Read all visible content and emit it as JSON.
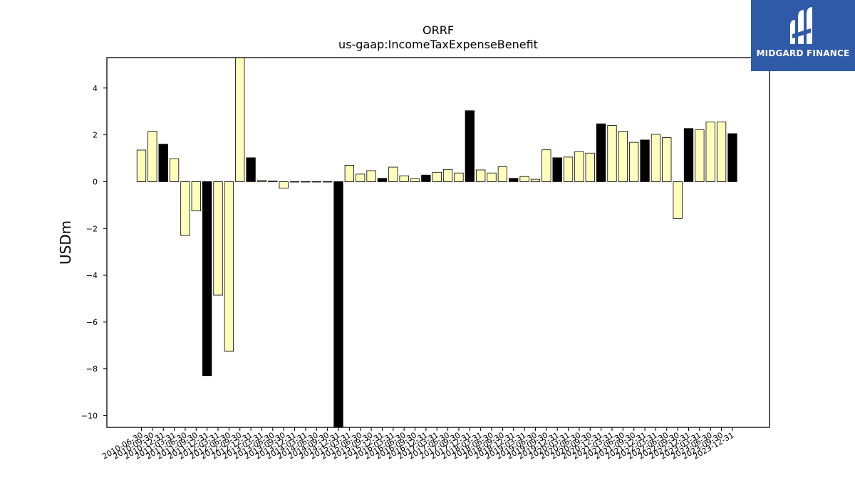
{
  "logo": {
    "text": "MIDGARD FINANCE",
    "icon": "midgard-logo-icon",
    "background": "#2f5aa8"
  },
  "chart_data": {
    "type": "bar",
    "title": "ORRF",
    "subtitle": "us-gaap:IncomeTaxExpenseBenefit",
    "ylabel": "USDm",
    "xlabel": "",
    "ylim": [
      -10.5,
      5.3
    ],
    "yticks": [
      -10,
      -8,
      -6,
      -4,
      -2,
      0,
      2,
      4
    ],
    "grid": false,
    "colors": {
      "quarter": "#ffffbb",
      "annual": "#000000",
      "edge": "#000000"
    },
    "categories": [
      "2010-06-30",
      "2010-09-30",
      "2010-12-31",
      "2011-03-31",
      "2011-06-30",
      "2011-09-30",
      "2011-12-31",
      "2012-03-31",
      "2012-06-30",
      "2012-09-30",
      "2012-12-31",
      "2013-03-31",
      "2013-06-30",
      "2013-09-30",
      "2013-12-31",
      "2014-03-31",
      "2014-06-30",
      "2014-09-30",
      "2014-12-31",
      "2015-03-31",
      "2015-06-30",
      "2015-09-30",
      "2015-12-31",
      "2016-03-31",
      "2016-06-30",
      "2016-09-30",
      "2016-12-31",
      "2017-03-31",
      "2017-06-30",
      "2017-09-30",
      "2017-12-31",
      "2018-03-31",
      "2018-06-30",
      "2018-09-30",
      "2018-12-31",
      "2019-03-31",
      "2019-06-30",
      "2019-09-30",
      "2019-12-31",
      "2020-03-31",
      "2020-06-30",
      "2020-09-30",
      "2020-12-31",
      "2021-03-31",
      "2021-06-30",
      "2021-09-30",
      "2021-12-31",
      "2022-03-31",
      "2022-06-30",
      "2022-09-30",
      "2022-12-31",
      "2023-03-31",
      "2023-06-30",
      "2023-09-30",
      "2023-12-31"
    ],
    "values": [
      1.35,
      2.15,
      1.6,
      0.98,
      -2.3,
      -1.25,
      -8.3,
      -4.85,
      -7.25,
      5.3,
      1.02,
      0.05,
      0.03,
      -0.28,
      0.0,
      0.0,
      0.0,
      0.0,
      -10.5,
      0.7,
      0.32,
      0.47,
      0.14,
      0.62,
      0.25,
      0.12,
      0.28,
      0.4,
      0.52,
      0.37,
      3.03,
      0.5,
      0.37,
      0.64,
      0.14,
      0.22,
      0.1,
      1.36,
      1.02,
      1.05,
      1.28,
      1.22,
      2.47,
      2.4,
      2.15,
      1.68,
      1.78,
      2.02,
      1.88,
      -1.58,
      2.27,
      2.22,
      2.55,
      2.55,
      2.05
    ],
    "annual": [
      false,
      false,
      true,
      false,
      false,
      false,
      true,
      false,
      false,
      false,
      true,
      false,
      false,
      false,
      true,
      false,
      false,
      false,
      true,
      false,
      false,
      false,
      true,
      false,
      false,
      false,
      true,
      false,
      false,
      false,
      true,
      false,
      false,
      false,
      true,
      false,
      false,
      false,
      true,
      false,
      false,
      false,
      true,
      false,
      false,
      false,
      true,
      false,
      false,
      false,
      true,
      false,
      false,
      false,
      true
    ]
  }
}
